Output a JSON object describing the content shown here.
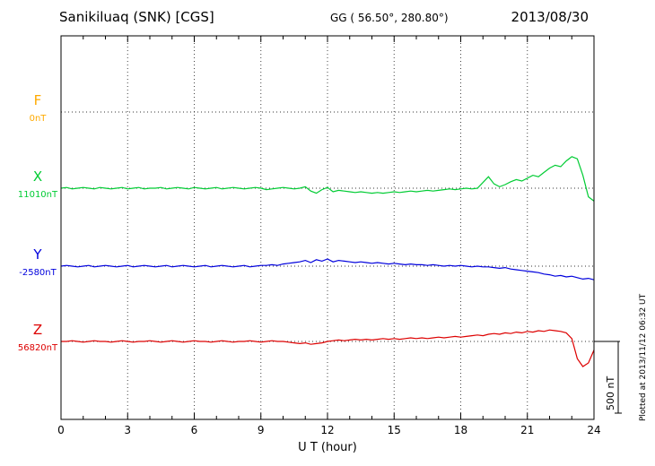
{
  "header": {
    "title": "Sanikiluaq (SNK)  [CGS]",
    "geo": "GG ( 56.50°, 280.80°)",
    "date": "2013/08/30"
  },
  "side_note": "Plotted at 2013/11/12 06:32 UT",
  "chart_data": {
    "type": "line",
    "title": "Sanikiluaq (SNK) [CGS] magnetogram 2013/08/30",
    "xlabel": "U T (hour)",
    "x_range": [
      0,
      24
    ],
    "x_ticks": [
      0,
      3,
      6,
      9,
      12,
      15,
      18,
      21,
      24
    ],
    "x_step_hours": 0.25,
    "grid": "dotted vertical at 3h intervals, dotted horizontal at each channel baseline",
    "scale_bar": {
      "label": "500 nT",
      "nT": 500
    },
    "series": [
      {
        "name": "F",
        "baseline_label": "0nT",
        "baseline_nT": 0,
        "color": "#FFAA00",
        "offsets_nT": []
      },
      {
        "name": "X",
        "baseline_label": "11010nT",
        "baseline_nT": 11010,
        "color": "#00CC33",
        "offsets_nT": [
          0,
          5,
          -5,
          0,
          5,
          0,
          -5,
          5,
          0,
          -5,
          0,
          5,
          -5,
          0,
          5,
          -5,
          0,
          0,
          5,
          -5,
          0,
          5,
          0,
          -5,
          5,
          0,
          -5,
          0,
          5,
          -5,
          0,
          5,
          0,
          -5,
          0,
          5,
          0,
          -10,
          -5,
          0,
          5,
          0,
          -5,
          0,
          10,
          -20,
          -35,
          -10,
          5,
          -25,
          -15,
          -20,
          -25,
          -30,
          -25,
          -30,
          -35,
          -30,
          -35,
          -30,
          -25,
          -30,
          -25,
          -20,
          -25,
          -20,
          -15,
          -20,
          -15,
          -10,
          -5,
          -10,
          -5,
          0,
          -5,
          0,
          40,
          80,
          30,
          10,
          25,
          45,
          60,
          50,
          70,
          90,
          80,
          110,
          140,
          160,
          150,
          190,
          220,
          205,
          90,
          -60,
          -90
        ]
      },
      {
        "name": "Y",
        "baseline_label": "-2580nT",
        "baseline_nT": -2580,
        "color": "#0000DD",
        "offsets_nT": [
          0,
          5,
          0,
          -5,
          0,
          5,
          -5,
          0,
          5,
          0,
          -5,
          0,
          5,
          -5,
          0,
          5,
          0,
          -5,
          0,
          5,
          -5,
          0,
          5,
          0,
          -5,
          0,
          5,
          -5,
          0,
          5,
          0,
          -5,
          0,
          5,
          -5,
          0,
          5,
          5,
          10,
          5,
          15,
          20,
          25,
          30,
          40,
          25,
          45,
          35,
          50,
          30,
          40,
          35,
          30,
          25,
          30,
          25,
          20,
          25,
          20,
          15,
          20,
          15,
          10,
          15,
          10,
          10,
          5,
          10,
          5,
          0,
          5,
          0,
          5,
          0,
          -5,
          0,
          -5,
          -5,
          -10,
          -15,
          -10,
          -20,
          -25,
          -30,
          -35,
          -40,
          -45,
          -55,
          -60,
          -70,
          -65,
          -75,
          -70,
          -80,
          -90,
          -85,
          -95
        ]
      },
      {
        "name": "Z",
        "baseline_label": "56820nT",
        "baseline_nT": 56820,
        "color": "#DD0000",
        "offsets_nT": [
          0,
          0,
          5,
          0,
          -5,
          0,
          5,
          0,
          0,
          -5,
          0,
          5,
          0,
          -5,
          0,
          0,
          5,
          0,
          -5,
          0,
          5,
          0,
          -5,
          0,
          5,
          0,
          0,
          -5,
          0,
          5,
          0,
          -5,
          0,
          0,
          5,
          0,
          -5,
          0,
          5,
          0,
          0,
          -5,
          -10,
          -15,
          -10,
          -20,
          -15,
          -10,
          0,
          5,
          10,
          5,
          10,
          15,
          10,
          15,
          10,
          15,
          20,
          15,
          20,
          15,
          20,
          25,
          20,
          25,
          20,
          25,
          30,
          25,
          30,
          35,
          30,
          35,
          40,
          45,
          40,
          50,
          55,
          50,
          60,
          55,
          65,
          60,
          70,
          65,
          75,
          70,
          80,
          75,
          70,
          60,
          20,
          -120,
          -175,
          -150,
          -60
        ]
      }
    ]
  }
}
